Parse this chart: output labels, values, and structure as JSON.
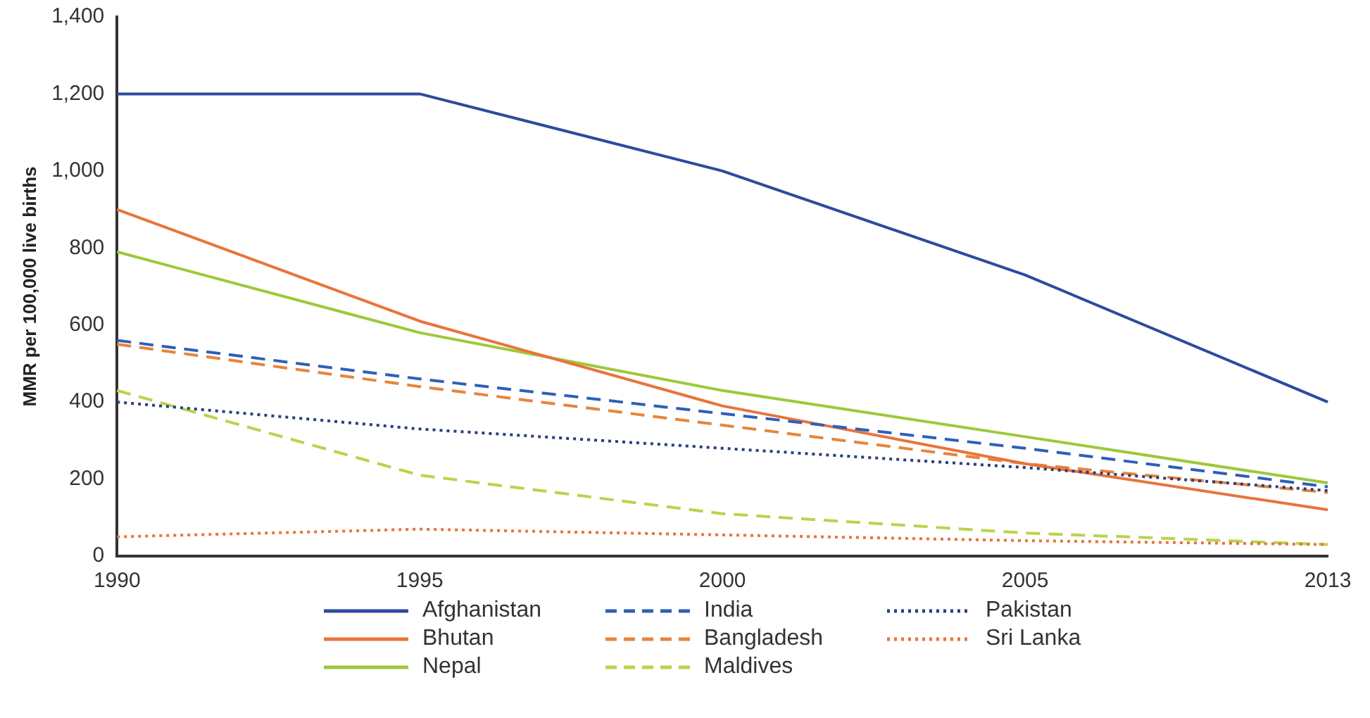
{
  "chart_data": {
    "type": "line",
    "ylabel": "MMR per 100,000 live births",
    "categories": [
      "1990",
      "1995",
      "2000",
      "2005",
      "2013"
    ],
    "ylim": [
      0,
      1400
    ],
    "yticks": [
      {
        "value": 0,
        "label": "0"
      },
      {
        "value": 200,
        "label": "200"
      },
      {
        "value": 400,
        "label": "400"
      },
      {
        "value": 600,
        "label": "600"
      },
      {
        "value": 800,
        "label": "800"
      },
      {
        "value": 1000,
        "label": "1,000"
      },
      {
        "value": 1200,
        "label": "1,200"
      },
      {
        "value": 1400,
        "label": "1,400"
      }
    ],
    "grid": false,
    "legend": "bottom",
    "marker": "none",
    "series": [
      {
        "name": "Afghanistan",
        "color": "#2e4a9e",
        "line_style": "solid",
        "values": [
          1200,
          1200,
          1000,
          730,
          400
        ]
      },
      {
        "name": "India",
        "color": "#2e5fb8",
        "line_style": "dashed",
        "values": [
          560,
          460,
          370,
          280,
          180
        ]
      },
      {
        "name": "Pakistan",
        "color": "#2a3f7e",
        "line_style": "dotted",
        "values": [
          400,
          330,
          280,
          230,
          170
        ]
      },
      {
        "name": "Bhutan",
        "color": "#e8743b",
        "line_style": "solid",
        "values": [
          900,
          610,
          390,
          240,
          120
        ]
      },
      {
        "name": "Bangladesh",
        "color": "#e8843b",
        "line_style": "dashed",
        "values": [
          550,
          440,
          340,
          240,
          165
        ]
      },
      {
        "name": "Sri Lanka",
        "color": "#e8743b",
        "line_style": "dotted",
        "values": [
          50,
          70,
          55,
          40,
          30
        ]
      },
      {
        "name": "Nepal",
        "color": "#9dc83a",
        "line_style": "solid",
        "values": [
          790,
          580,
          430,
          310,
          190
        ]
      },
      {
        "name": "Maldives",
        "color": "#b8d44a",
        "line_style": "dashed",
        "values": [
          430,
          210,
          110,
          60,
          30
        ]
      }
    ]
  }
}
